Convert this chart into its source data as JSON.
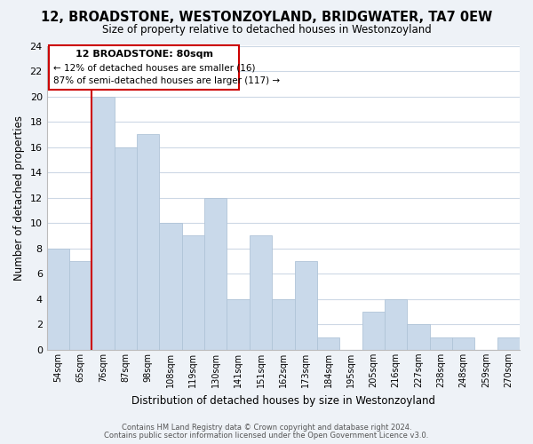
{
  "title": "12, BROADSTONE, WESTONZOYLAND, BRIDGWATER, TA7 0EW",
  "subtitle": "Size of property relative to detached houses in Westonzoyland",
  "xlabel": "Distribution of detached houses by size in Westonzoyland",
  "ylabel": "Number of detached properties",
  "bar_color": "#c9d9ea",
  "bar_edge_color": "#b0c4d8",
  "bin_labels": [
    "54sqm",
    "65sqm",
    "76sqm",
    "87sqm",
    "98sqm",
    "108sqm",
    "119sqm",
    "130sqm",
    "141sqm",
    "151sqm",
    "162sqm",
    "173sqm",
    "184sqm",
    "195sqm",
    "205sqm",
    "216sqm",
    "227sqm",
    "238sqm",
    "248sqm",
    "259sqm",
    "270sqm"
  ],
  "values": [
    8,
    7,
    20,
    16,
    17,
    10,
    9,
    12,
    4,
    9,
    4,
    7,
    1,
    0,
    3,
    4,
    2,
    1,
    1,
    0,
    1
  ],
  "red_line_x": 2.0,
  "annotation_title": "12 BROADSTONE: 80sqm",
  "annotation_line1": "← 12% of detached houses are smaller (16)",
  "annotation_line2": "87% of semi-detached houses are larger (117) →",
  "ylim": [
    0,
    24
  ],
  "yticks": [
    0,
    2,
    4,
    6,
    8,
    10,
    12,
    14,
    16,
    18,
    20,
    22,
    24
  ],
  "footer1": "Contains HM Land Registry data © Crown copyright and database right 2024.",
  "footer2": "Contains public sector information licensed under the Open Government Licence v3.0.",
  "background_color": "#eef2f7",
  "plot_bg_color": "#ffffff",
  "grid_color": "#cdd8e5"
}
